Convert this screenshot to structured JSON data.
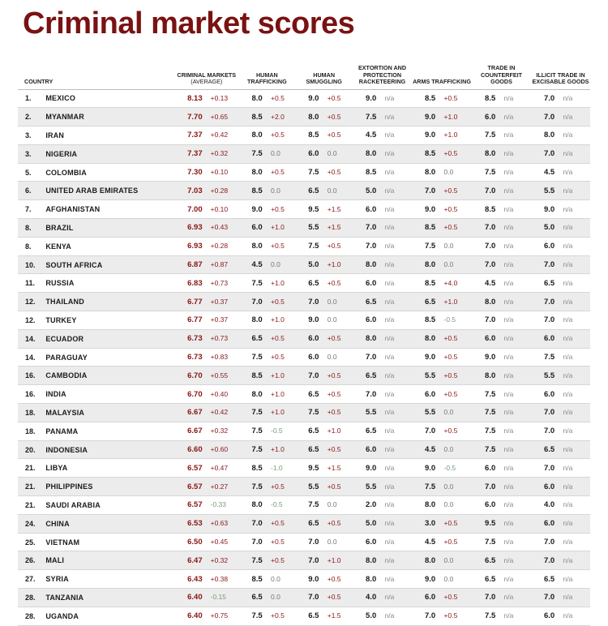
{
  "title": "Criminal market scores",
  "headers": {
    "country": "COUNTRY",
    "criminal_markets": "CRIMINAL MARKETS",
    "average": "(AVERAGE)",
    "human_trafficking": "HUMAN TRAFFICKING",
    "human_smuggling": "HUMAN SMUGGLING",
    "extortion": "EXTORTION AND PROTECTION RACKETEERING",
    "arms_trafficking": "ARMS TRAFFICKING",
    "counterfeit": "TRADE IN COUNTERFEIT GOODS",
    "excisable": "ILLICIT TRADE IN EXCISABLE GOODS"
  },
  "rows": [
    {
      "rank": "1.",
      "country": "MEXICO",
      "cells": [
        [
          "8.13",
          "+0.13"
        ],
        [
          "8.0",
          "+0.5"
        ],
        [
          "9.0",
          "+0.5"
        ],
        [
          "9.0",
          "n/a"
        ],
        [
          "8.5",
          "+0.5"
        ],
        [
          "8.5",
          "n/a"
        ],
        [
          "7.0",
          "n/a"
        ]
      ]
    },
    {
      "rank": "2.",
      "country": "MYANMAR",
      "cells": [
        [
          "7.70",
          "+0.65"
        ],
        [
          "8.5",
          "+2.0"
        ],
        [
          "8.0",
          "+0.5"
        ],
        [
          "7.5",
          "n/a"
        ],
        [
          "9.0",
          "+1.0"
        ],
        [
          "6.0",
          "n/a"
        ],
        [
          "7.0",
          "n/a"
        ]
      ]
    },
    {
      "rank": "3.",
      "country": "IRAN",
      "cells": [
        [
          "7.37",
          "+0.42"
        ],
        [
          "8.0",
          "+0.5"
        ],
        [
          "8.5",
          "+0.5"
        ],
        [
          "4.5",
          "n/a"
        ],
        [
          "9.0",
          "+1.0"
        ],
        [
          "7.5",
          "n/a"
        ],
        [
          "8.0",
          "n/a"
        ]
      ]
    },
    {
      "rank": "3.",
      "country": "NIGERIA",
      "cells": [
        [
          "7.37",
          "+0.32"
        ],
        [
          "7.5",
          "0.0"
        ],
        [
          "6.0",
          "0.0"
        ],
        [
          "8.0",
          "n/a"
        ],
        [
          "8.5",
          "+0.5"
        ],
        [
          "8.0",
          "n/a"
        ],
        [
          "7.0",
          "n/a"
        ]
      ]
    },
    {
      "rank": "5.",
      "country": "COLOMBIA",
      "cells": [
        [
          "7.30",
          "+0.10"
        ],
        [
          "8.0",
          "+0.5"
        ],
        [
          "7.5",
          "+0.5"
        ],
        [
          "8.5",
          "n/a"
        ],
        [
          "8.0",
          "0.0"
        ],
        [
          "7.5",
          "n/a"
        ],
        [
          "4.5",
          "n/a"
        ]
      ]
    },
    {
      "rank": "6.",
      "country": "UNITED ARAB EMIRATES",
      "cells": [
        [
          "7.03",
          "+0.28"
        ],
        [
          "8.5",
          "0.0"
        ],
        [
          "6.5",
          "0.0"
        ],
        [
          "5.0",
          "n/a"
        ],
        [
          "7.0",
          "+0.5"
        ],
        [
          "7.0",
          "n/a"
        ],
        [
          "5.5",
          "n/a"
        ]
      ]
    },
    {
      "rank": "7.",
      "country": "AFGHANISTAN",
      "cells": [
        [
          "7.00",
          "+0.10"
        ],
        [
          "9.0",
          "+0.5"
        ],
        [
          "9.5",
          "+1.5"
        ],
        [
          "6.0",
          "n/a"
        ],
        [
          "9.0",
          "+0.5"
        ],
        [
          "8.5",
          "n/a"
        ],
        [
          "9.0",
          "n/a"
        ]
      ]
    },
    {
      "rank": "8.",
      "country": "BRAZIL",
      "cells": [
        [
          "6.93",
          "+0.43"
        ],
        [
          "6.0",
          "+1.0"
        ],
        [
          "5.5",
          "+1.5"
        ],
        [
          "7.0",
          "n/a"
        ],
        [
          "8.5",
          "+0.5"
        ],
        [
          "7.0",
          "n/a"
        ],
        [
          "5.0",
          "n/a"
        ]
      ]
    },
    {
      "rank": "8.",
      "country": "KENYA",
      "cells": [
        [
          "6.93",
          "+0.28"
        ],
        [
          "8.0",
          "+0.5"
        ],
        [
          "7.5",
          "+0.5"
        ],
        [
          "7.0",
          "n/a"
        ],
        [
          "7.5",
          "0.0"
        ],
        [
          "7.0",
          "n/a"
        ],
        [
          "6.0",
          "n/a"
        ]
      ]
    },
    {
      "rank": "10.",
      "country": "SOUTH AFRICA",
      "cells": [
        [
          "6.87",
          "+0.87"
        ],
        [
          "4.5",
          "0.0"
        ],
        [
          "5.0",
          "+1.0"
        ],
        [
          "8.0",
          "n/a"
        ],
        [
          "8.0",
          "0.0"
        ],
        [
          "7.0",
          "n/a"
        ],
        [
          "7.0",
          "n/a"
        ]
      ]
    },
    {
      "rank": "11.",
      "country": "RUSSIA",
      "cells": [
        [
          "6.83",
          "+0.73"
        ],
        [
          "7.5",
          "+1.0"
        ],
        [
          "6.5",
          "+0.5"
        ],
        [
          "6.0",
          "n/a"
        ],
        [
          "8.5",
          "+4.0"
        ],
        [
          "4.5",
          "n/a"
        ],
        [
          "6.5",
          "n/a"
        ]
      ]
    },
    {
      "rank": "12.",
      "country": "THAILAND",
      "cells": [
        [
          "6.77",
          "+0.37"
        ],
        [
          "7.0",
          "+0.5"
        ],
        [
          "7.0",
          "0.0"
        ],
        [
          "6.5",
          "n/a"
        ],
        [
          "6.5",
          "+1.0"
        ],
        [
          "8.0",
          "n/a"
        ],
        [
          "7.0",
          "n/a"
        ]
      ]
    },
    {
      "rank": "12.",
      "country": "TURKEY",
      "cells": [
        [
          "6.77",
          "+0.37"
        ],
        [
          "8.0",
          "+1.0"
        ],
        [
          "9.0",
          "0.0"
        ],
        [
          "6.0",
          "n/a"
        ],
        [
          "8.5",
          "-0.5"
        ],
        [
          "7.0",
          "n/a"
        ],
        [
          "7.0",
          "n/a"
        ]
      ]
    },
    {
      "rank": "14.",
      "country": "ECUADOR",
      "cells": [
        [
          "6.73",
          "+0.73"
        ],
        [
          "6.5",
          "+0.5"
        ],
        [
          "6.0",
          "+0.5"
        ],
        [
          "8.0",
          "n/a"
        ],
        [
          "8.0",
          "+0.5"
        ],
        [
          "6.0",
          "n/a"
        ],
        [
          "6.0",
          "n/a"
        ]
      ]
    },
    {
      "rank": "14.",
      "country": "PARAGUAY",
      "cells": [
        [
          "6.73",
          "+0.83"
        ],
        [
          "7.5",
          "+0.5"
        ],
        [
          "6.0",
          "0.0"
        ],
        [
          "7.0",
          "n/a"
        ],
        [
          "9.0",
          "+0.5"
        ],
        [
          "9.0",
          "n/a"
        ],
        [
          "7.5",
          "n/a"
        ]
      ]
    },
    {
      "rank": "16.",
      "country": "CAMBODIA",
      "cells": [
        [
          "6.70",
          "+0.55"
        ],
        [
          "8.5",
          "+1.0"
        ],
        [
          "7.0",
          "+0.5"
        ],
        [
          "6.5",
          "n/a"
        ],
        [
          "5.5",
          "+0.5"
        ],
        [
          "8.0",
          "n/a"
        ],
        [
          "5.5",
          "n/a"
        ]
      ]
    },
    {
      "rank": "16.",
      "country": "INDIA",
      "cells": [
        [
          "6.70",
          "+0.40"
        ],
        [
          "8.0",
          "+1.0"
        ],
        [
          "6.5",
          "+0.5"
        ],
        [
          "7.0",
          "n/a"
        ],
        [
          "6.0",
          "+0.5"
        ],
        [
          "7.5",
          "n/a"
        ],
        [
          "6.0",
          "n/a"
        ]
      ]
    },
    {
      "rank": "18.",
      "country": "MALAYSIA",
      "cells": [
        [
          "6.67",
          "+0.42"
        ],
        [
          "7.5",
          "+1.0"
        ],
        [
          "7.5",
          "+0.5"
        ],
        [
          "5.5",
          "n/a"
        ],
        [
          "5.5",
          "0.0"
        ],
        [
          "7.5",
          "n/a"
        ],
        [
          "7.0",
          "n/a"
        ]
      ]
    },
    {
      "rank": "18.",
      "country": "PANAMA",
      "cells": [
        [
          "6.67",
          "+0.32"
        ],
        [
          "7.5",
          "-0.5"
        ],
        [
          "6.5",
          "+1.0"
        ],
        [
          "6.5",
          "n/a"
        ],
        [
          "7.0",
          "+0.5"
        ],
        [
          "7.5",
          "n/a"
        ],
        [
          "7.0",
          "n/a"
        ]
      ]
    },
    {
      "rank": "20.",
      "country": "INDONESIA",
      "cells": [
        [
          "6.60",
          "+0.60"
        ],
        [
          "7.5",
          "+1.0"
        ],
        [
          "6.5",
          "+0.5"
        ],
        [
          "6.0",
          "n/a"
        ],
        [
          "4.5",
          "0.0"
        ],
        [
          "7.5",
          "n/a"
        ],
        [
          "6.5",
          "n/a"
        ]
      ]
    },
    {
      "rank": "21.",
      "country": "LIBYA",
      "cells": [
        [
          "6.57",
          "+0.47"
        ],
        [
          "8.5",
          "-1.0"
        ],
        [
          "9.5",
          "+1.5"
        ],
        [
          "9.0",
          "n/a"
        ],
        [
          "9.0",
          "-0.5"
        ],
        [
          "6.0",
          "n/a"
        ],
        [
          "7.0",
          "n/a"
        ]
      ]
    },
    {
      "rank": "21.",
      "country": "PHILIPPINES",
      "cells": [
        [
          "6.57",
          "+0.27"
        ],
        [
          "7.5",
          "+0.5"
        ],
        [
          "5.5",
          "+0.5"
        ],
        [
          "5.5",
          "n/a"
        ],
        [
          "7.5",
          "0.0"
        ],
        [
          "7.0",
          "n/a"
        ],
        [
          "6.0",
          "n/a"
        ]
      ]
    },
    {
      "rank": "21.",
      "country": "SAUDI ARABIA",
      "cells": [
        [
          "6.57",
          "-0.33"
        ],
        [
          "8.0",
          "-0.5"
        ],
        [
          "7.5",
          "0.0"
        ],
        [
          "2.0",
          "n/a"
        ],
        [
          "8.0",
          "0.0"
        ],
        [
          "6.0",
          "n/a"
        ],
        [
          "4.0",
          "n/a"
        ]
      ]
    },
    {
      "rank": "24.",
      "country": "CHINA",
      "cells": [
        [
          "6.53",
          "+0.63"
        ],
        [
          "7.0",
          "+0.5"
        ],
        [
          "6.5",
          "+0.5"
        ],
        [
          "5.0",
          "n/a"
        ],
        [
          "3.0",
          "+0.5"
        ],
        [
          "9.5",
          "n/a"
        ],
        [
          "6.0",
          "n/a"
        ]
      ]
    },
    {
      "rank": "25.",
      "country": "VIETNAM",
      "cells": [
        [
          "6.50",
          "+0.45"
        ],
        [
          "7.0",
          "+0.5"
        ],
        [
          "7.0",
          "0.0"
        ],
        [
          "6.0",
          "n/a"
        ],
        [
          "4.5",
          "+0.5"
        ],
        [
          "7.5",
          "n/a"
        ],
        [
          "7.0",
          "n/a"
        ]
      ]
    },
    {
      "rank": "26.",
      "country": "MALI",
      "cells": [
        [
          "6.47",
          "+0.32"
        ],
        [
          "7.5",
          "+0.5"
        ],
        [
          "7.0",
          "+1.0"
        ],
        [
          "8.0",
          "n/a"
        ],
        [
          "8.0",
          "0.0"
        ],
        [
          "6.5",
          "n/a"
        ],
        [
          "7.0",
          "n/a"
        ]
      ]
    },
    {
      "rank": "27.",
      "country": "SYRIA",
      "cells": [
        [
          "6.43",
          "+0.38"
        ],
        [
          "8.5",
          "0.0"
        ],
        [
          "9.0",
          "+0.5"
        ],
        [
          "8.0",
          "n/a"
        ],
        [
          "9.0",
          "0.0"
        ],
        [
          "6.5",
          "n/a"
        ],
        [
          "6.5",
          "n/a"
        ]
      ]
    },
    {
      "rank": "28.",
      "country": "TANZANIA",
      "cells": [
        [
          "6.40",
          "-0.15"
        ],
        [
          "6.5",
          "0.0"
        ],
        [
          "7.0",
          "+0.5"
        ],
        [
          "4.0",
          "n/a"
        ],
        [
          "6.0",
          "+0.5"
        ],
        [
          "7.0",
          "n/a"
        ],
        [
          "7.0",
          "n/a"
        ]
      ]
    },
    {
      "rank": "28.",
      "country": "UGANDA",
      "cells": [
        [
          "6.40",
          "+0.75"
        ],
        [
          "7.5",
          "+0.5"
        ],
        [
          "6.5",
          "+1.5"
        ],
        [
          "5.0",
          "n/a"
        ],
        [
          "7.0",
          "+0.5"
        ],
        [
          "7.5",
          "n/a"
        ],
        [
          "6.0",
          "n/a"
        ]
      ]
    }
  ]
}
